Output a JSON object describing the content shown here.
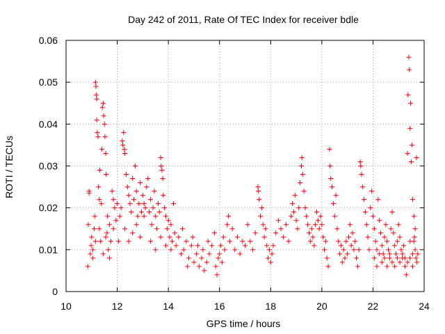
{
  "chart_data": {
    "type": "scatter",
    "title": "Day 242 of 2011, Rate Of TEC Index for receiver bdle",
    "xlabel": "GPS time / hours",
    "ylabel": "ROTI / TECUs",
    "xlim": [
      10,
      24
    ],
    "ylim": [
      0,
      0.06
    ],
    "x_ticks": [
      10,
      12,
      14,
      16,
      18,
      20,
      22,
      24
    ],
    "x_tick_labels": [
      "10",
      "12",
      "14",
      "16",
      "18",
      "20",
      "22",
      "24"
    ],
    "y_ticks": [
      0,
      0.01,
      0.02,
      0.03,
      0.04,
      0.05,
      0.06
    ],
    "y_tick_labels": [
      "0",
      "0.01",
      "0.02",
      "0.03",
      "0.04",
      "0.05",
      "0.06"
    ],
    "grid": true,
    "marker": "+",
    "marker_color": "#ff0000",
    "series": [
      {
        "name": "ROTI",
        "points": [
          [
            10.85,
            0.006
          ],
          [
            10.87,
            0.016
          ],
          [
            10.9,
            0.024
          ],
          [
            10.9,
            0.0235
          ],
          [
            10.95,
            0.009
          ],
          [
            10.98,
            0.011
          ],
          [
            11.0,
            0.013
          ],
          [
            11.05,
            0.008
          ],
          [
            11.1,
            0.015
          ],
          [
            11.12,
            0.018
          ],
          [
            11.15,
            0.05
          ],
          [
            11.17,
            0.049
          ],
          [
            11.18,
            0.047
          ],
          [
            11.2,
            0.046
          ],
          [
            11.2,
            0.041
          ],
          [
            11.22,
            0.038
          ],
          [
            11.25,
            0.037
          ],
          [
            11.27,
            0.025
          ],
          [
            11.3,
            0.022
          ],
          [
            11.32,
            0.029
          ],
          [
            11.35,
            0.012
          ],
          [
            11.38,
            0.021
          ],
          [
            11.4,
            0.034
          ],
          [
            11.42,
            0.044
          ],
          [
            11.45,
            0.045
          ],
          [
            11.47,
            0.042
          ],
          [
            11.5,
            0.04
          ],
          [
            11.52,
            0.037
          ],
          [
            11.55,
            0.033
          ],
          [
            11.57,
            0.028
          ],
          [
            11.6,
            0.014
          ],
          [
            11.62,
            0.018
          ],
          [
            11.65,
            0.01
          ],
          [
            11.7,
            0.016
          ],
          [
            11.75,
            0.012
          ],
          [
            11.8,
            0.024
          ],
          [
            11.85,
            0.022
          ],
          [
            11.9,
            0.02
          ],
          [
            11.95,
            0.017
          ],
          [
            12.0,
            0.021
          ],
          [
            11.05,
            0.01
          ],
          [
            11.15,
            0.012
          ],
          [
            11.3,
            0.015
          ],
          [
            11.45,
            0.009
          ],
          [
            11.55,
            0.013
          ],
          [
            11.7,
            0.008
          ],
          [
            11.85,
            0.015
          ],
          [
            12.05,
            0.012
          ],
          [
            12.1,
            0.018
          ],
          [
            12.15,
            0.02
          ],
          [
            12.2,
            0.036
          ],
          [
            12.22,
            0.035
          ],
          [
            12.25,
            0.038
          ],
          [
            12.28,
            0.034
          ],
          [
            12.3,
            0.033
          ],
          [
            12.35,
            0.028
          ],
          [
            12.4,
            0.025
          ],
          [
            12.45,
            0.023
          ],
          [
            12.5,
            0.021
          ],
          [
            12.55,
            0.019
          ],
          [
            12.6,
            0.027
          ],
          [
            12.65,
            0.022
          ],
          [
            12.7,
            0.03
          ],
          [
            12.75,
            0.024
          ],
          [
            12.8,
            0.018
          ],
          [
            12.85,
            0.021
          ],
          [
            12.9,
            0.026
          ],
          [
            12.95,
            0.019
          ],
          [
            13.0,
            0.023
          ],
          [
            13.05,
            0.021
          ],
          [
            12.3,
            0.015
          ],
          [
            12.45,
            0.012
          ],
          [
            12.6,
            0.014
          ],
          [
            12.75,
            0.016
          ],
          [
            12.9,
            0.013
          ],
          [
            13.05,
            0.018
          ],
          [
            13.1,
            0.02
          ],
          [
            13.15,
            0.025
          ],
          [
            13.2,
            0.027
          ],
          [
            13.25,
            0.019
          ],
          [
            13.3,
            0.022
          ],
          [
            13.35,
            0.016
          ],
          [
            13.4,
            0.02
          ],
          [
            13.45,
            0.024
          ],
          [
            13.5,
            0.018
          ],
          [
            13.55,
            0.015
          ],
          [
            13.6,
            0.021
          ],
          [
            13.65,
            0.019
          ],
          [
            13.7,
            0.032
          ],
          [
            13.72,
            0.03
          ],
          [
            13.75,
            0.029
          ],
          [
            13.78,
            0.027
          ],
          [
            13.8,
            0.023
          ],
          [
            13.85,
            0.02
          ],
          [
            13.9,
            0.018
          ],
          [
            13.95,
            0.015
          ],
          [
            14.0,
            0.017
          ],
          [
            14.05,
            0.013
          ],
          [
            14.1,
            0.016
          ],
          [
            14.15,
            0.012
          ],
          [
            13.3,
            0.012
          ],
          [
            13.5,
            0.01
          ],
          [
            13.7,
            0.013
          ],
          [
            13.9,
            0.011
          ],
          [
            14.1,
            0.01
          ],
          [
            14.2,
            0.021
          ],
          [
            14.25,
            0.014
          ],
          [
            14.3,
            0.011
          ],
          [
            14.4,
            0.013
          ],
          [
            14.5,
            0.009
          ],
          [
            14.6,
            0.01
          ],
          [
            14.7,
            0.012
          ],
          [
            14.8,
            0.008
          ],
          [
            14.9,
            0.011
          ],
          [
            15.0,
            0.007
          ],
          [
            15.1,
            0.009
          ],
          [
            15.2,
            0.006
          ],
          [
            15.3,
            0.008
          ],
          [
            15.4,
            0.005
          ],
          [
            15.5,
            0.007
          ],
          [
            14.55,
            0.015
          ],
          [
            14.75,
            0.006
          ],
          [
            14.95,
            0.013
          ],
          [
            15.15,
            0.011
          ],
          [
            15.35,
            0.01
          ],
          [
            15.55,
            0.012
          ],
          [
            15.6,
            0.009
          ],
          [
            15.7,
            0.011
          ],
          [
            15.8,
            0.014
          ],
          [
            15.85,
            0.006
          ],
          [
            15.9,
            0.004
          ],
          [
            15.95,
            0.008
          ],
          [
            16.0,
            0.009
          ],
          [
            16.05,
            0.011
          ],
          [
            16.1,
            0.007
          ],
          [
            16.15,
            0.013
          ],
          [
            16.2,
            0.01
          ],
          [
            16.3,
            0.016
          ],
          [
            16.35,
            0.018
          ],
          [
            16.4,
            0.012
          ],
          [
            16.5,
            0.015
          ],
          [
            16.6,
            0.01
          ],
          [
            16.7,
            0.013
          ],
          [
            16.8,
            0.009
          ],
          [
            16.9,
            0.012
          ],
          [
            17.0,
            0.011
          ],
          [
            17.1,
            0.016
          ],
          [
            17.2,
            0.012
          ],
          [
            17.3,
            0.01
          ],
          [
            17.4,
            0.014
          ],
          [
            17.5,
            0.025
          ],
          [
            17.52,
            0.024
          ],
          [
            17.55,
            0.022
          ],
          [
            17.6,
            0.018
          ],
          [
            17.65,
            0.02
          ],
          [
            17.7,
            0.016
          ],
          [
            17.75,
            0.013
          ],
          [
            17.8,
            0.015
          ],
          [
            17.85,
            0.011
          ],
          [
            17.9,
            0.008
          ],
          [
            17.95,
            0.01
          ],
          [
            18.0,
            0.007
          ],
          [
            18.05,
            0.009
          ],
          [
            18.1,
            0.011
          ],
          [
            18.2,
            0.014
          ],
          [
            18.3,
            0.017
          ],
          [
            18.4,
            0.015
          ],
          [
            18.5,
            0.013
          ],
          [
            18.6,
            0.016
          ],
          [
            18.7,
            0.012
          ],
          [
            18.8,
            0.018
          ],
          [
            18.85,
            0.021
          ],
          [
            18.9,
            0.019
          ],
          [
            18.95,
            0.023
          ],
          [
            19.0,
            0.017
          ],
          [
            19.05,
            0.015
          ],
          [
            19.1,
            0.02
          ],
          [
            19.15,
            0.026
          ],
          [
            19.2,
            0.03
          ],
          [
            19.22,
            0.032
          ],
          [
            19.25,
            0.028
          ],
          [
            19.3,
            0.024
          ],
          [
            19.35,
            0.02
          ],
          [
            19.4,
            0.018
          ],
          [
            19.45,
            0.016
          ],
          [
            19.5,
            0.014
          ],
          [
            19.55,
            0.012
          ],
          [
            19.6,
            0.015
          ],
          [
            19.65,
            0.013
          ],
          [
            19.7,
            0.011
          ],
          [
            19.75,
            0.016
          ],
          [
            19.8,
            0.019
          ],
          [
            19.85,
            0.017
          ],
          [
            19.9,
            0.015
          ],
          [
            19.95,
            0.018
          ],
          [
            20.0,
            0.016
          ],
          [
            20.05,
            0.013
          ],
          [
            20.1,
            0.01
          ],
          [
            20.15,
            0.012
          ],
          [
            20.2,
            0.008
          ],
          [
            20.25,
            0.006
          ],
          [
            20.3,
            0.034
          ],
          [
            20.32,
            0.03
          ],
          [
            20.35,
            0.027
          ],
          [
            20.4,
            0.025
          ],
          [
            20.45,
            0.021
          ],
          [
            20.5,
            0.018
          ],
          [
            20.55,
            0.023
          ],
          [
            20.6,
            0.015
          ],
          [
            20.65,
            0.012
          ],
          [
            20.7,
            0.009
          ],
          [
            20.75,
            0.011
          ],
          [
            20.8,
            0.007
          ],
          [
            20.85,
            0.01
          ],
          [
            20.9,
            0.008
          ],
          [
            20.95,
            0.012
          ],
          [
            21.0,
            0.009
          ],
          [
            21.05,
            0.013
          ],
          [
            21.1,
            0.016
          ],
          [
            21.15,
            0.011
          ],
          [
            21.2,
            0.014
          ],
          [
            21.25,
            0.01
          ],
          [
            21.3,
            0.012
          ],
          [
            21.35,
            0.008
          ],
          [
            21.4,
            0.006
          ],
          [
            21.45,
            0.01
          ],
          [
            21.5,
            0.031
          ],
          [
            21.52,
            0.03
          ],
          [
            21.55,
            0.028
          ],
          [
            21.6,
            0.025
          ],
          [
            21.65,
            0.022
          ],
          [
            21.7,
            0.019
          ],
          [
            21.75,
            0.016
          ],
          [
            21.8,
            0.013
          ],
          [
            21.85,
            0.01
          ],
          [
            21.9,
            0.02
          ],
          [
            21.95,
            0.024
          ],
          [
            22.0,
            0.018
          ],
          [
            22.05,
            0.015
          ],
          [
            22.1,
            0.012
          ],
          [
            22.15,
            0.01
          ],
          [
            22.2,
            0.022
          ],
          [
            22.25,
            0.017
          ],
          [
            22.3,
            0.014
          ],
          [
            22.35,
            0.011
          ],
          [
            22.4,
            0.009
          ],
          [
            22.45,
            0.013
          ],
          [
            22.5,
            0.016
          ],
          [
            22.55,
            0.012
          ],
          [
            22.6,
            0.01
          ],
          [
            22.65,
            0.008
          ],
          [
            22.7,
            0.015
          ],
          [
            22.75,
            0.019
          ],
          [
            22.8,
            0.014
          ],
          [
            22.85,
            0.011
          ],
          [
            22.9,
            0.009
          ],
          [
            22.95,
            0.012
          ],
          [
            23.0,
            0.016
          ],
          [
            23.05,
            0.013
          ],
          [
            23.1,
            0.01
          ],
          [
            23.15,
            0.008
          ],
          [
            23.2,
            0.011
          ],
          [
            23.25,
            0.006
          ],
          [
            23.3,
            0.004
          ],
          [
            23.35,
            0.033
          ],
          [
            23.37,
            0.047
          ],
          [
            23.4,
            0.056
          ],
          [
            23.42,
            0.053
          ],
          [
            23.45,
            0.039
          ],
          [
            23.47,
            0.045
          ],
          [
            23.5,
            0.031
          ],
          [
            23.52,
            0.035
          ],
          [
            23.55,
            0.022
          ],
          [
            23.6,
            0.018
          ],
          [
            23.62,
            0.013
          ],
          [
            23.65,
            0.01
          ],
          [
            23.68,
            0.008
          ],
          [
            23.7,
            0.032
          ],
          [
            23.72,
            0.007
          ],
          [
            23.75,
            0.009
          ],
          [
            22.05,
            0.008
          ],
          [
            22.15,
            0.006
          ],
          [
            22.25,
            0.009
          ],
          [
            22.35,
            0.007
          ],
          [
            22.45,
            0.008
          ],
          [
            22.55,
            0.006
          ],
          [
            22.65,
            0.009
          ],
          [
            22.75,
            0.007
          ],
          [
            22.85,
            0.006
          ],
          [
            22.95,
            0.008
          ],
          [
            23.05,
            0.007
          ],
          [
            23.15,
            0.009
          ],
          [
            23.25,
            0.008
          ],
          [
            23.35,
            0.007
          ],
          [
            23.45,
            0.008
          ],
          [
            23.55,
            0.009
          ],
          [
            23.6,
            0.012
          ],
          [
            23.65,
            0.015
          ],
          [
            23.55,
            0.006
          ],
          [
            23.45,
            0.012
          ]
        ]
      }
    ]
  }
}
